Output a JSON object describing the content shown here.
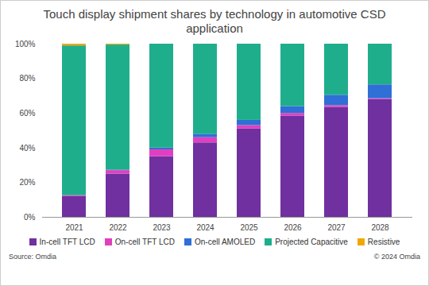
{
  "chart_data": {
    "type": "bar",
    "title": "Touch display shipment shares by technology in automotive CSD application",
    "source": "Source: Omdia",
    "copyright": "© 2024 Omdia",
    "categories": [
      "2021",
      "2022",
      "2023",
      "2024",
      "2025",
      "2026",
      "2027",
      "2028"
    ],
    "series": [
      {
        "name": "In-cell TFT LCD",
        "color": "#7030a0",
        "values": [
          12,
          25,
          35,
          43,
          51,
          58.5,
          63.5,
          68
        ]
      },
      {
        "name": "On-cell TFT LCD",
        "color": "#e040c0",
        "values": [
          0.5,
          2,
          4,
          3,
          2,
          1.5,
          1,
          0.5
        ]
      },
      {
        "name": "On-cell AMOLED",
        "color": "#2f6fd6",
        "values": [
          0,
          0.3,
          1,
          2,
          3,
          4,
          6,
          8
        ]
      },
      {
        "name": "Projected Capacitive",
        "color": "#1fae8c",
        "values": [
          86.5,
          72.2,
          60,
          52,
          44,
          36,
          29.5,
          23.5
        ]
      },
      {
        "name": "Resistive",
        "color": "#f0a800",
        "values": [
          1,
          0.5,
          0,
          0,
          0,
          0,
          0,
          0
        ]
      }
    ],
    "stacked": true,
    "legend": "bottom",
    "grid": false,
    "ylim": [
      0,
      100
    ],
    "yticks": [
      {
        "value": 0,
        "label": "0%"
      },
      {
        "value": 20,
        "label": "20%"
      },
      {
        "value": 40,
        "label": "40%"
      },
      {
        "value": 60,
        "label": "60%"
      },
      {
        "value": 80,
        "label": "80%"
      },
      {
        "value": 100,
        "label": "100%"
      }
    ]
  }
}
